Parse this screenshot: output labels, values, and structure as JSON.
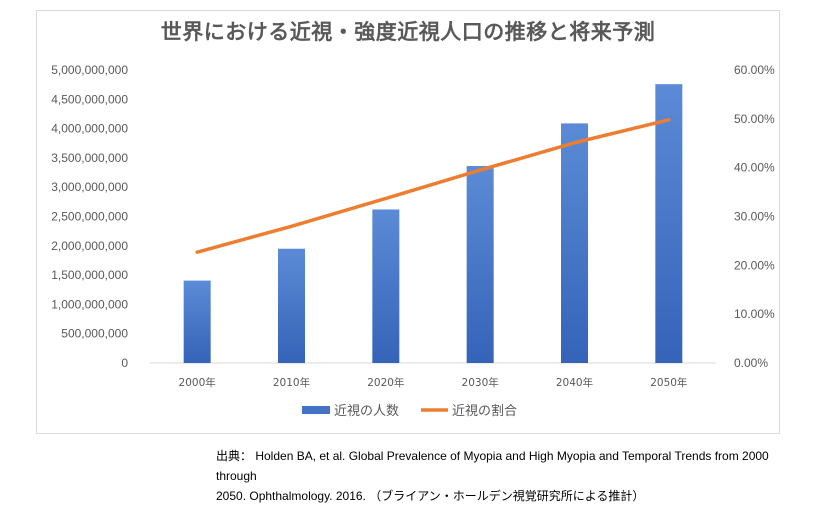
{
  "chart_data": {
    "type": "bar",
    "title": "世界における近視・強度近視人口の推移と将来予測",
    "categories": [
      "2000年",
      "2010年",
      "2020年",
      "2030年",
      "2040年",
      "2050年"
    ],
    "series": [
      {
        "name": "近視の人数",
        "type": "bar",
        "axis": "left",
        "color": "#4472c4",
        "values": [
          1406000000,
          1950000000,
          2620000000,
          3361000000,
          4089000000,
          4758000000
        ]
      },
      {
        "name": "近視の割合",
        "type": "line",
        "axis": "right",
        "color": "#ed7d31",
        "values": [
          0.227,
          0.28,
          0.337,
          0.395,
          0.451,
          0.498
        ]
      }
    ],
    "y_left": {
      "min": 0,
      "max": 5000000000,
      "ticks": [
        "0",
        "500,000,000",
        "1,000,000,000",
        "1,500,000,000",
        "2,000,000,000",
        "2,500,000,000",
        "3,000,000,000",
        "3,500,000,000",
        "4,000,000,000",
        "4,500,000,000",
        "5,000,000,000"
      ]
    },
    "y_right": {
      "min": 0,
      "max": 0.6,
      "ticks": [
        "0.00%",
        "10.00%",
        "20.00%",
        "30.00%",
        "40.00%",
        "50.00%",
        "60.00%"
      ]
    },
    "grid": false,
    "legend_position": "bottom"
  },
  "source": {
    "line1": "出典：  Holden BA, et al. Global Prevalence of Myopia and High Myopia and Temporal Trends from 2000 through",
    "line2": "2050. Ophthalmology. 2016. （ブライアン・ホールデン視覚研究所による推計）"
  }
}
